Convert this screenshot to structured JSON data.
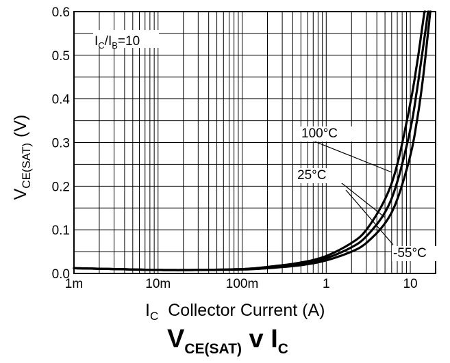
{
  "chart_data": {
    "type": "line",
    "x_scale": "log",
    "x_ticks": [
      {
        "value": 0.001,
        "label": "1m"
      },
      {
        "value": 0.01,
        "label": "10m"
      },
      {
        "value": 0.1,
        "label": "100m"
      },
      {
        "value": 1,
        "label": "1"
      },
      {
        "value": 10,
        "label": "10"
      }
    ],
    "y_ticks": [
      {
        "value": 0.0,
        "label": "0.0"
      },
      {
        "value": 0.1,
        "label": "0.1"
      },
      {
        "value": 0.2,
        "label": "0.2"
      },
      {
        "value": 0.3,
        "label": "0.3"
      },
      {
        "value": 0.4,
        "label": "0.4"
      },
      {
        "value": 0.5,
        "label": "0.5"
      },
      {
        "value": 0.6,
        "label": "0.6"
      }
    ],
    "xlim": [
      0.001,
      20
    ],
    "ylim": [
      0,
      0.6
    ],
    "grid": true,
    "condition": {
      "label_a": "I",
      "sub_a": "C",
      "slash": "/I",
      "sub_b": "B",
      "value": "=10"
    },
    "title": {
      "main": "V",
      "main_sub": "CE(SAT)",
      "mid": " v I",
      "mid_sub": "C"
    },
    "xlabel": {
      "symbol": "I",
      "sub": "C",
      "text": "Collector Current (A)"
    },
    "ylabel": {
      "symbol": "V",
      "sub": "CE(SAT)",
      "unit": "(V)"
    },
    "series": [
      {
        "name": "100°C",
        "x": [
          0.001,
          0.003,
          0.01,
          0.03,
          0.1,
          0.2,
          0.5,
          1,
          2,
          3,
          5,
          7,
          10,
          12,
          14,
          15
        ],
        "y": [
          0.012,
          0.01,
          0.008,
          0.008,
          0.01,
          0.015,
          0.025,
          0.04,
          0.07,
          0.1,
          0.17,
          0.25,
          0.39,
          0.48,
          0.57,
          0.61
        ]
      },
      {
        "name": "25°C",
        "x": [
          0.001,
          0.003,
          0.01,
          0.03,
          0.1,
          0.2,
          0.5,
          1,
          2,
          3,
          5,
          7,
          10,
          12,
          14,
          15.5,
          16.5
        ],
        "y": [
          0.012,
          0.01,
          0.008,
          0.008,
          0.01,
          0.014,
          0.022,
          0.035,
          0.06,
          0.085,
          0.14,
          0.21,
          0.33,
          0.42,
          0.51,
          0.57,
          0.61
        ]
      },
      {
        "name": "-55°C",
        "x": [
          0.001,
          0.003,
          0.01,
          0.03,
          0.1,
          0.2,
          0.5,
          1,
          2,
          3,
          5,
          7,
          10,
          12,
          14,
          16,
          17.5
        ],
        "y": [
          0.012,
          0.01,
          0.008,
          0.008,
          0.009,
          0.012,
          0.019,
          0.03,
          0.05,
          0.07,
          0.115,
          0.17,
          0.27,
          0.35,
          0.44,
          0.54,
          0.61
        ]
      }
    ]
  }
}
